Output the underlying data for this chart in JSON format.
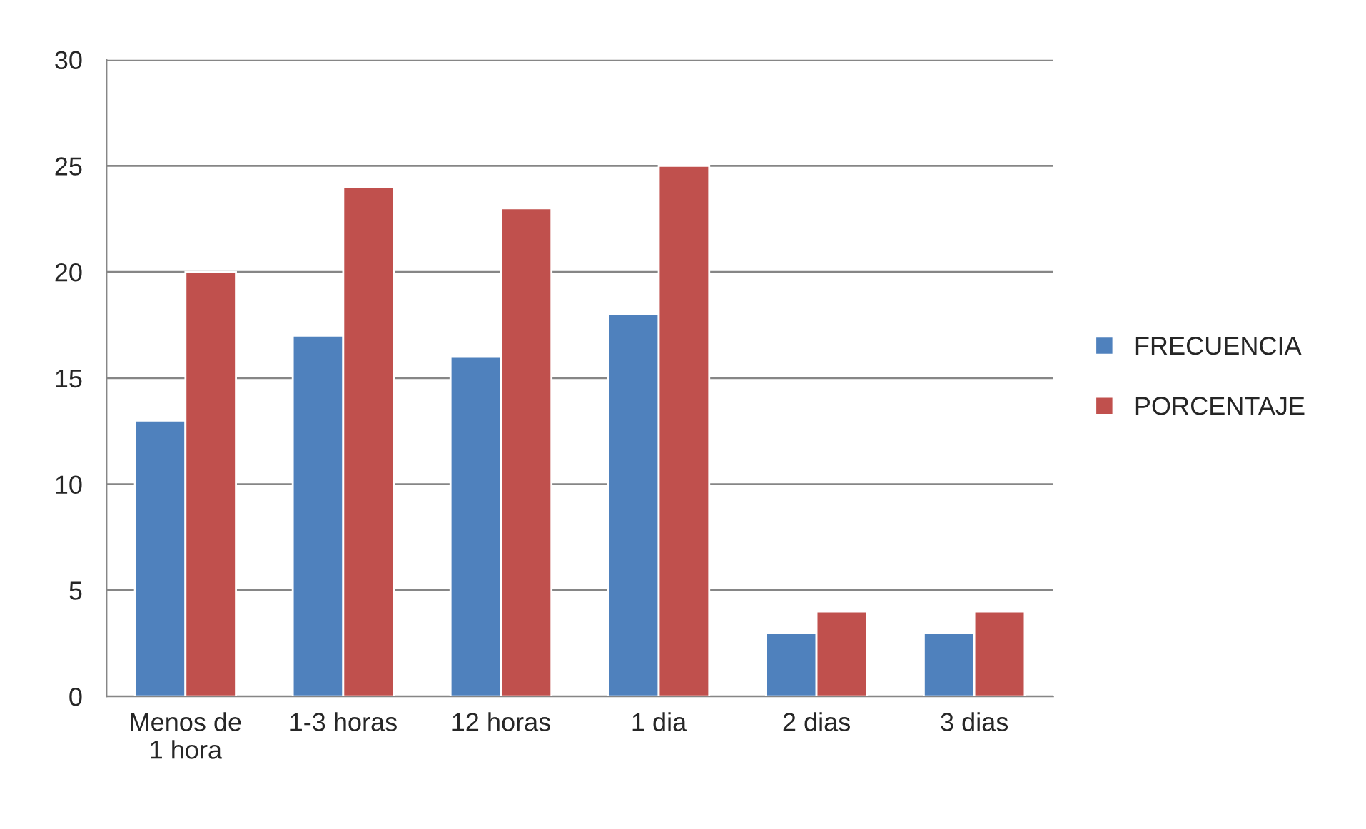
{
  "chart_data": {
    "type": "bar",
    "categories": [
      "Menos de\n1 hora",
      "1-3 horas",
      "12 horas",
      "1 dia",
      "2 dias",
      "3 dias"
    ],
    "series": [
      {
        "name": "FRECUENCIA",
        "color": "#4f81bd",
        "values": [
          13,
          17,
          16,
          18,
          3,
          3
        ]
      },
      {
        "name": "PORCENTAJE",
        "color": "#c0504d",
        "values": [
          20,
          24,
          23,
          25,
          4,
          4
        ]
      }
    ],
    "ylim": [
      0,
      30
    ],
    "yticks": [
      0,
      5,
      10,
      15,
      20,
      25,
      30
    ],
    "grid": "y",
    "legend": "right"
  }
}
